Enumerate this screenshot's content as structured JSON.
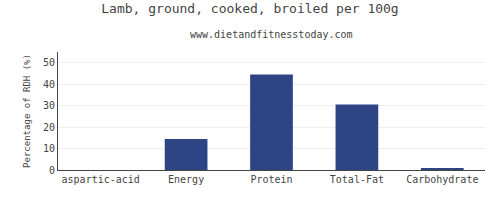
{
  "chart_data": {
    "type": "bar",
    "title": "Lamb, ground, cooked, broiled per 100g",
    "subtitle": "www.dietandfitnesstoday.com",
    "categories": [
      "aspartic-acid",
      "Energy",
      "Protein",
      "Total-Fat",
      "Carbohydrate"
    ],
    "values": [
      0,
      14.5,
      44.5,
      30.5,
      0.5
    ],
    "color": "#2d4485",
    "ylabel": "Percentage of RDH (%)",
    "ylim": [
      0,
      55
    ],
    "yticks": [
      0,
      10,
      20,
      30,
      40,
      50
    ],
    "grid": true
  }
}
